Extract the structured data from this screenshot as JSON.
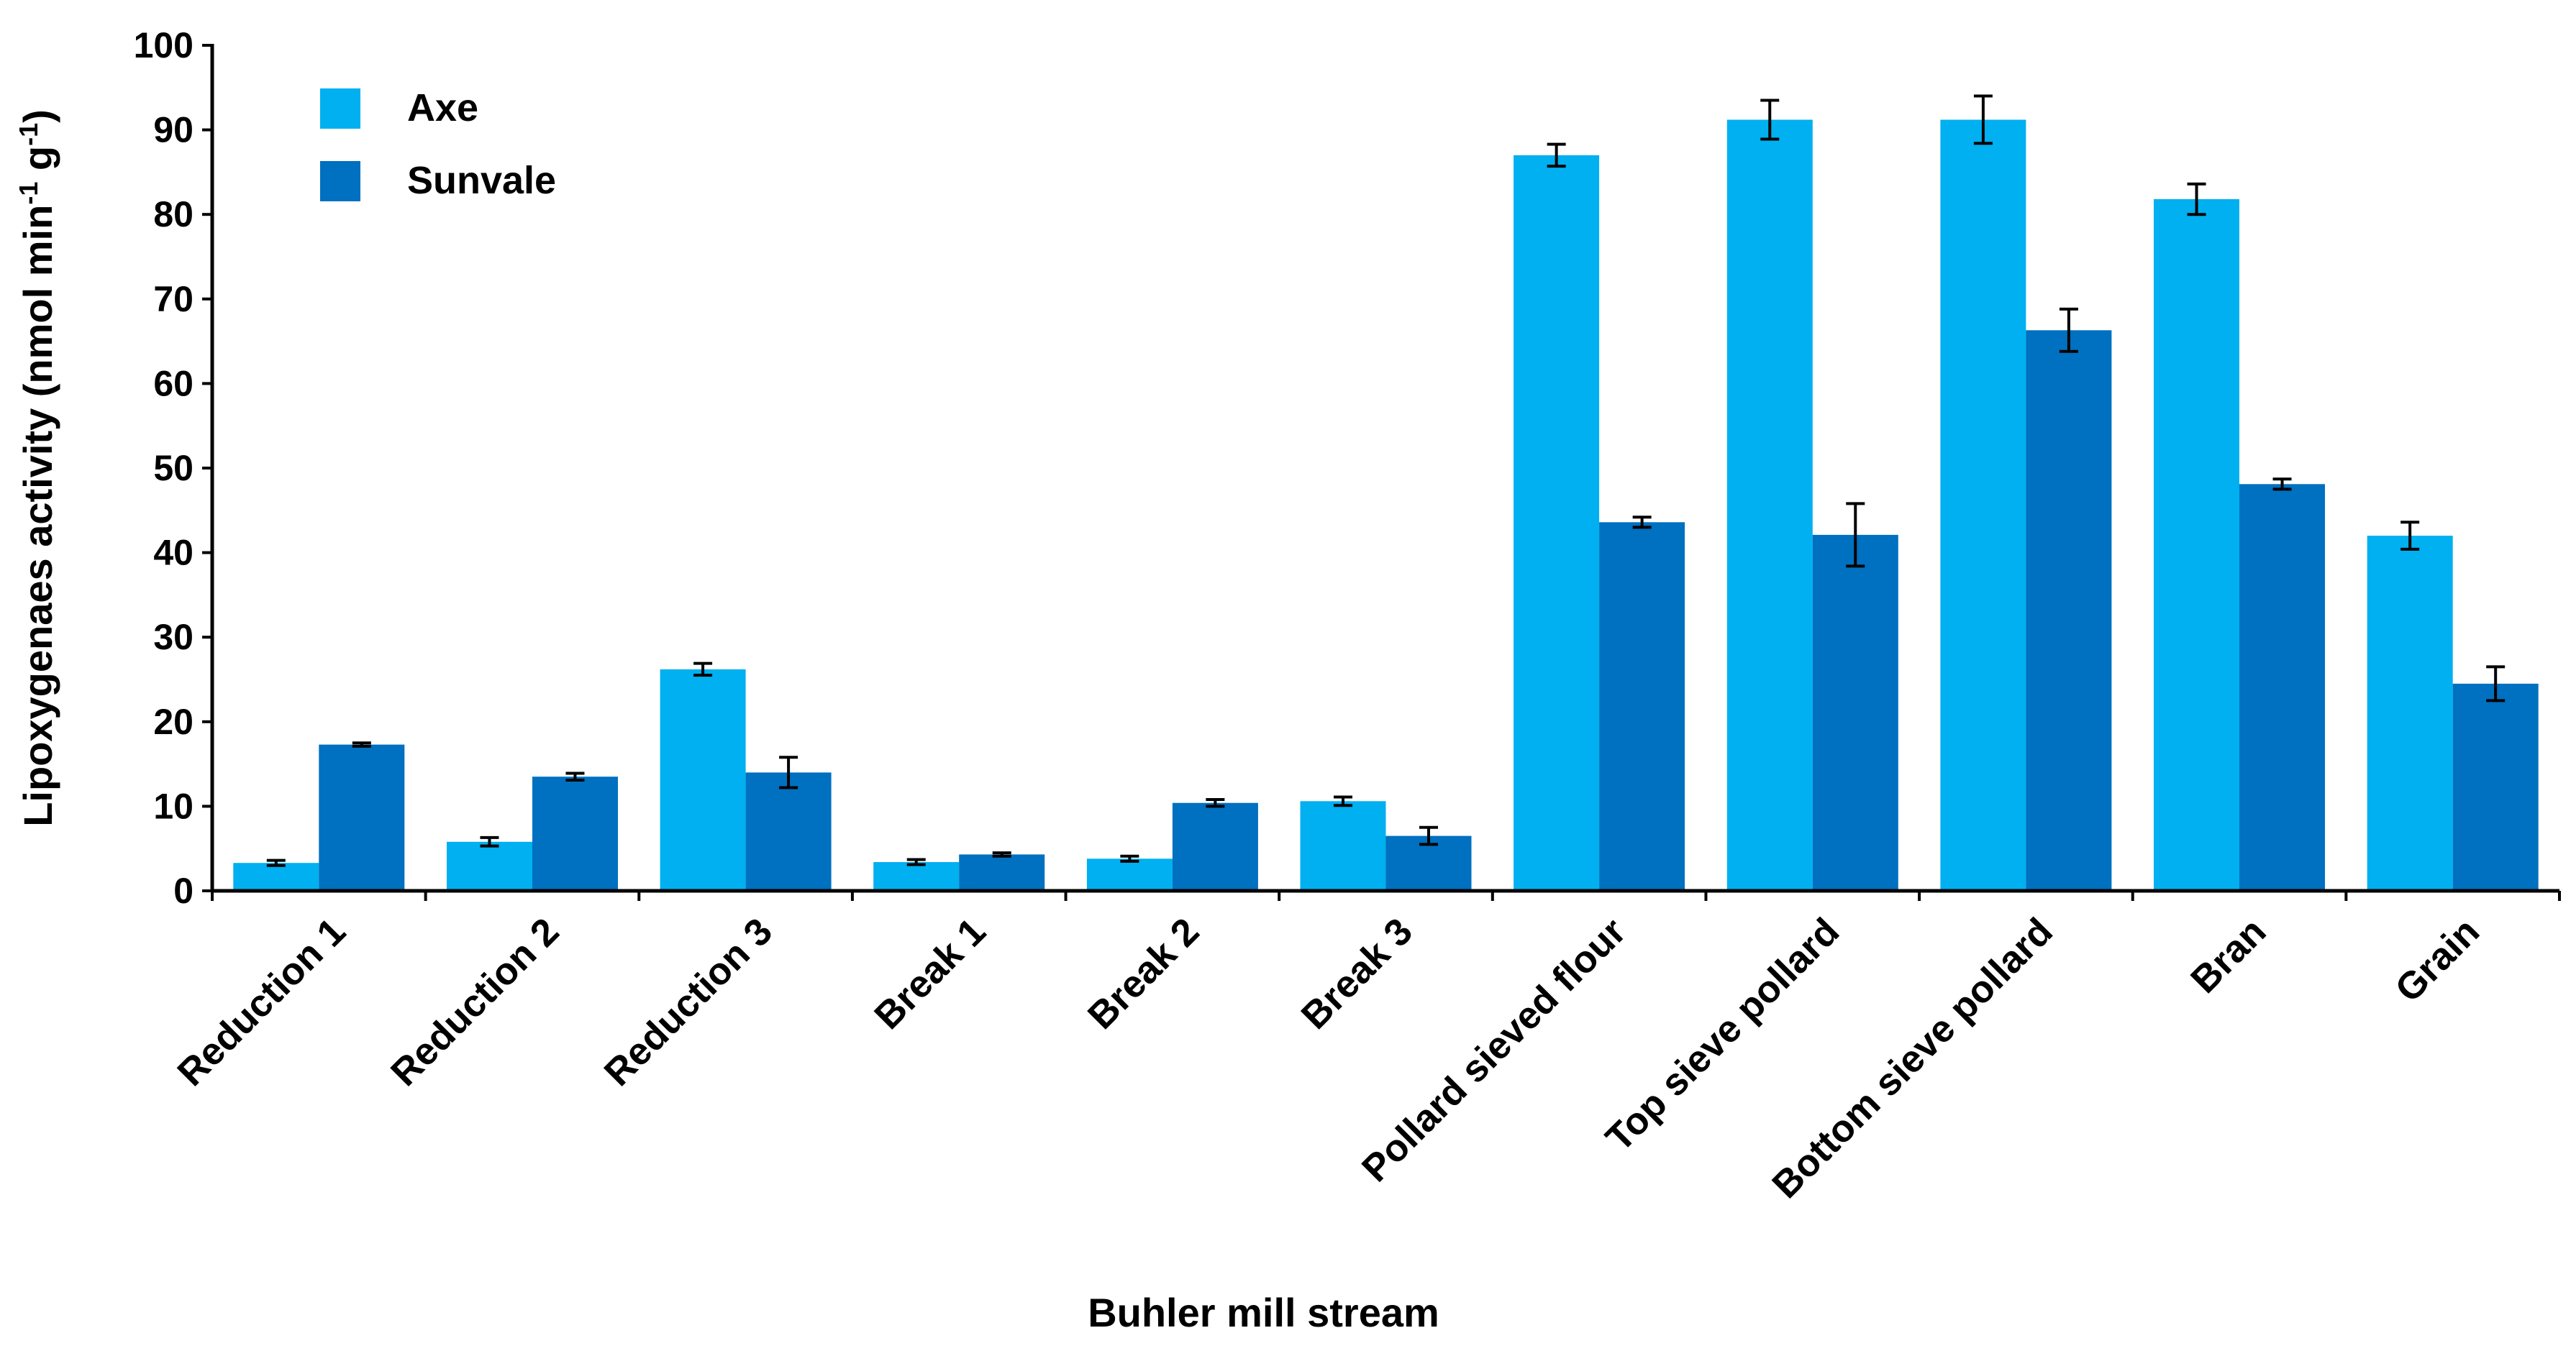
{
  "chart_data": {
    "type": "bar",
    "xlabel": "Buhler mill stream",
    "ylabel": {
      "main": "Lipoxygenaes activity (nmol min",
      "sup1": "-1",
      "mid": " g",
      "sup2": "-1",
      "end": ")"
    },
    "ylim": [
      0,
      100
    ],
    "yticks": [
      0,
      10,
      20,
      30,
      40,
      50,
      60,
      70,
      80,
      90,
      100
    ],
    "grid": false,
    "legend_position": "top-left",
    "categories": [
      "Reduction 1",
      "Reduction 2",
      "Reduction 3",
      "Break 1",
      "Break 2",
      "Break 3",
      "Pollard sieved flour",
      "Top sieve pollard",
      "Bottom sieve pollard",
      "Bran",
      "Grain"
    ],
    "series": [
      {
        "name": "Axe",
        "color": "#00B0F0",
        "values": [
          3.3,
          5.8,
          26.2,
          3.4,
          3.8,
          10.6,
          87.0,
          91.2,
          91.2,
          81.8,
          42.0
        ],
        "errors": [
          0.3,
          0.5,
          0.7,
          0.3,
          0.3,
          0.5,
          1.3,
          2.3,
          2.8,
          1.8,
          1.6
        ]
      },
      {
        "name": "Sunvale",
        "color": "#0070C0",
        "values": [
          17.3,
          13.5,
          14.0,
          4.3,
          10.4,
          6.5,
          43.6,
          42.1,
          66.3,
          48.1,
          24.5
        ],
        "errors": [
          0.2,
          0.4,
          1.8,
          0.2,
          0.4,
          1.0,
          0.6,
          3.7,
          2.5,
          0.6,
          2.0
        ]
      }
    ]
  }
}
